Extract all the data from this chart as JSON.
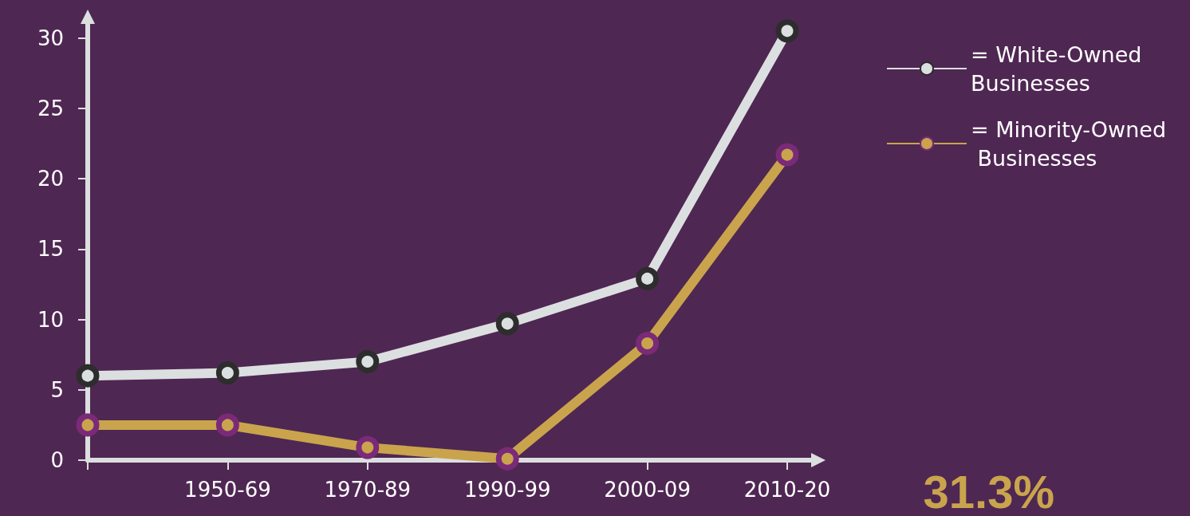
{
  "chart_data": {
    "type": "line",
    "categories": [
      null,
      "1950-69",
      "1970-89",
      "1990-99",
      "2000-09",
      "2010-20"
    ],
    "series": [
      {
        "name": "= White-Owned Businesses",
        "color": "#dcdfe0",
        "values": [
          6.0,
          6.2,
          7.0,
          9.7,
          12.9,
          30.5
        ]
      },
      {
        "name": "= Minority-Owned Businesses",
        "color": "#c9a44d",
        "values": [
          2.5,
          2.5,
          0.9,
          0.1,
          8.3,
          21.7
        ]
      }
    ],
    "ylim": [
      0,
      31
    ],
    "yticks": [
      0,
      5,
      10,
      15,
      20,
      25,
      30
    ],
    "grid": false,
    "legend": "top right",
    "marker": "circle",
    "annotations": [
      "31.3%"
    ]
  }
}
